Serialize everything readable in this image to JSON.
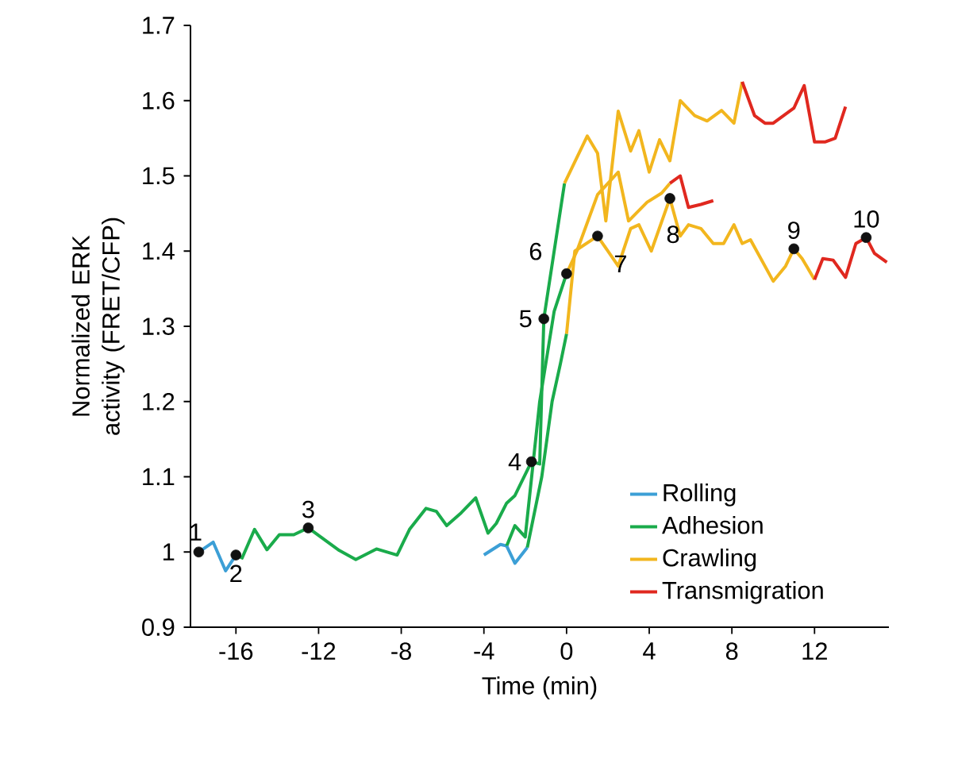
{
  "chart_data": {
    "type": "line",
    "xlabel": "Time (min)",
    "ylabel": "Normalized ERK activity (FRET/CFP)",
    "xlim": [
      -18.2,
      15.6
    ],
    "ylim": [
      0.9,
      1.7
    ],
    "xticks": [
      -16,
      -12,
      -8,
      -4,
      0,
      4,
      8,
      12
    ],
    "yticks": [
      0.9,
      1,
      1.1,
      1.2,
      1.3,
      1.4,
      1.5,
      1.6,
      1.7
    ],
    "grid": false,
    "legend": "bottom right",
    "marker": "none",
    "series": [
      {
        "name": "Rolling",
        "color": "#3c9fd6",
        "x": [
          -17.8,
          -17.1,
          -16.5,
          -16.0
        ],
        "values": [
          1.0,
          1.013,
          0.975,
          0.996
        ]
      },
      {
        "name": "Adhesion",
        "color": "#1aab4b",
        "x": [
          -16.0,
          -15.7,
          -15.1,
          -14.5,
          -13.9,
          -13.2,
          -12.5,
          -11.0,
          -10.2,
          -9.2,
          -8.2,
          -7.6,
          -6.8,
          -6.3,
          -5.8,
          -5.1,
          -4.4,
          -3.8,
          -3.4,
          -2.9,
          -2.5,
          -1.7,
          -1.3,
          -1.1,
          -0.1
        ],
        "values": [
          0.996,
          0.992,
          1.03,
          1.003,
          1.023,
          1.023,
          1.032,
          1.002,
          0.99,
          1.004,
          0.996,
          1.03,
          1.058,
          1.054,
          1.035,
          1.052,
          1.072,
          1.025,
          1.038,
          1.065,
          1.075,
          1.12,
          1.117,
          1.31,
          1.49
        ]
      },
      {
        "name": "Crawling",
        "color": "#f2b61e",
        "x": [
          -0.1,
          1.0,
          1.5,
          1.9,
          2.5,
          3.1,
          3.5,
          4.0,
          4.5,
          5.0,
          5.5,
          6.2,
          6.8,
          7.5,
          8.1,
          8.5
        ],
        "values": [
          1.49,
          1.553,
          1.53,
          1.44,
          1.586,
          1.533,
          1.56,
          1.505,
          1.548,
          1.52,
          1.6,
          1.58,
          1.573,
          1.587,
          1.57,
          1.625
        ]
      },
      {
        "name": "Transmigration",
        "color": "#e0281f",
        "x": [
          8.5,
          9.1,
          9.6,
          10.0,
          10.5,
          11.0,
          11.5,
          12.0,
          12.5,
          13.0,
          13.5
        ],
        "values": [
          1.625,
          1.58,
          1.57,
          1.57,
          1.58,
          1.59,
          1.62,
          1.545,
          1.545,
          1.55,
          1.592
        ]
      },
      {
        "color": "#3c9fd6",
        "x": [
          -4.0,
          -3.2,
          -2.9
        ],
        "values": [
          0.996,
          1.01,
          1.008
        ]
      },
      {
        "color": "#1aab4b",
        "x": [
          -2.9,
          -2.5,
          -2.0,
          -1.3,
          -0.6,
          0.0
        ],
        "values": [
          1.008,
          1.035,
          1.02,
          1.2,
          1.32,
          1.37
        ]
      },
      {
        "color": "#f2b61e",
        "x": [
          0.0,
          0.5,
          1.5,
          2.5,
          3.0,
          3.9,
          4.6,
          5.0
        ],
        "values": [
          1.37,
          1.4,
          1.475,
          1.505,
          1.44,
          1.465,
          1.477,
          1.49
        ]
      },
      {
        "color": "#e0281f",
        "x": [
          5.0,
          5.5,
          5.9,
          6.5,
          7.1
        ],
        "values": [
          1.49,
          1.5,
          1.458,
          1.462,
          1.467
        ]
      },
      {
        "color": "#3c9fd6",
        "x": [
          -2.9,
          -2.5,
          -1.9
        ],
        "values": [
          1.008,
          0.985,
          1.006
        ]
      },
      {
        "color": "#1aab4b",
        "x": [
          -1.9,
          -1.2,
          -0.7,
          -0.3,
          0.0
        ],
        "values": [
          1.006,
          1.1,
          1.2,
          1.25,
          1.29
        ]
      },
      {
        "color": "#f2b61e",
        "x": [
          0.0,
          0.4,
          1.5,
          2.5,
          3.1,
          3.5,
          4.1,
          5.0,
          5.5,
          5.9,
          6.5,
          7.1,
          7.6,
          8.1,
          8.5,
          8.9,
          10.0,
          10.6,
          11.0,
          11.4,
          12.0
        ],
        "values": [
          1.29,
          1.4,
          1.42,
          1.38,
          1.43,
          1.435,
          1.4,
          1.47,
          1.42,
          1.435,
          1.43,
          1.41,
          1.41,
          1.435,
          1.41,
          1.415,
          1.36,
          1.38,
          1.403,
          1.39,
          1.362
        ]
      },
      {
        "color": "#e0281f",
        "x": [
          12.0,
          12.4,
          12.9,
          13.5,
          14.0,
          14.5,
          14.9,
          15.5
        ],
        "values": [
          1.362,
          1.39,
          1.388,
          1.365,
          1.41,
          1.418,
          1.397,
          1.385
        ]
      },
      {
        "type": "scatter",
        "marker": "circle",
        "color": "#111111",
        "x": [
          -17.8,
          -16.0,
          -12.5,
          -1.7,
          -1.1,
          0.0,
          1.5,
          5.0,
          11.0,
          14.5
        ],
        "values": [
          1.0,
          0.996,
          1.032,
          1.12,
          1.31,
          1.37,
          1.42,
          1.47,
          1.403,
          1.418
        ]
      }
    ],
    "annotations": [
      {
        "text": "1",
        "x": -17.8,
        "y": 1.0
      },
      {
        "text": "2",
        "x": -16.0,
        "y": 0.996
      },
      {
        "text": "3",
        "x": -12.5,
        "y": 1.032
      },
      {
        "text": "4",
        "x": -1.7,
        "y": 1.12
      },
      {
        "text": "5",
        "x": -1.1,
        "y": 1.31
      },
      {
        "text": "6",
        "x": 0.0,
        "y": 1.37
      },
      {
        "text": "7",
        "x": 1.5,
        "y": 1.42
      },
      {
        "text": "8",
        "x": 5.0,
        "y": 1.47
      },
      {
        "text": "9",
        "x": 11.0,
        "y": 1.403
      },
      {
        "text": "10",
        "x": 14.5,
        "y": 1.418
      }
    ]
  }
}
